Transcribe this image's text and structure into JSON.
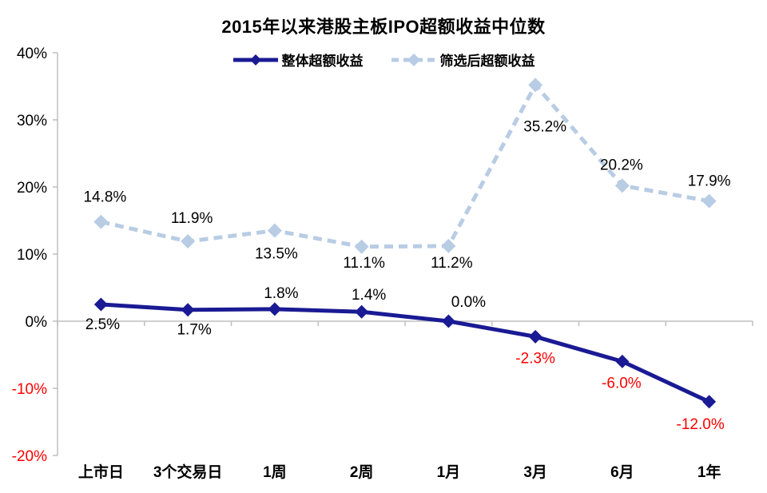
{
  "chart_data": {
    "type": "line",
    "title": "2015年以来港股主板IPO超额收益中位数",
    "categories": [
      "上市日",
      "3个交易日",
      "1周",
      "2周",
      "1月",
      "3月",
      "6月",
      "1年"
    ],
    "series": [
      {
        "name": "筛选后超额收益",
        "values": [
          14.8,
          11.9,
          13.5,
          11.1,
          11.2,
          35.2,
          20.2,
          17.9
        ],
        "labels": [
          "14.8%",
          "11.9%",
          "13.5%",
          "11.1%",
          "11.2%",
          "35.2%",
          "20.2%",
          "17.9%"
        ],
        "color": "#B8CCE4",
        "line_style": "dashed",
        "marker": "diamond",
        "label_offsets": [
          [
            5,
            -32
          ],
          [
            5,
            -30
          ],
          [
            2,
            28
          ],
          [
            3,
            19
          ],
          [
            4,
            20
          ],
          [
            12,
            51
          ],
          [
            -1,
            -27
          ],
          [
            0,
            -26
          ]
        ]
      },
      {
        "name": "整体超额收益",
        "values": [
          2.5,
          1.7,
          1.8,
          1.4,
          0.0,
          -2.3,
          -6.0,
          -12.0
        ],
        "labels": [
          "2.5%",
          "1.7%",
          "1.8%",
          "1.4%",
          "0.0%",
          "-2.3%",
          "-6.0%",
          "-12.0%"
        ],
        "color": "#1A1A94",
        "line_style": "solid",
        "marker": "diamond",
        "label_offsets": [
          [
            2,
            24
          ],
          [
            8,
            24
          ],
          [
            8,
            -21
          ],
          [
            9,
            -22
          ],
          [
            25,
            -25
          ],
          [
            0,
            26
          ],
          [
            -1,
            26
          ],
          [
            -11,
            27
          ]
        ]
      }
    ],
    "legend_order": [
      1,
      0
    ],
    "legend_position": "top",
    "y_axis": {
      "min": -20,
      "max": 40,
      "step": 10,
      "tick_labels": [
        "40%",
        "30%",
        "20%",
        "10%",
        "0%",
        "-10%",
        "-20%"
      ]
    },
    "grid": false,
    "colors": {
      "axis": "#BFBFBF",
      "label": "#000000",
      "negative": "#FF0000"
    }
  }
}
